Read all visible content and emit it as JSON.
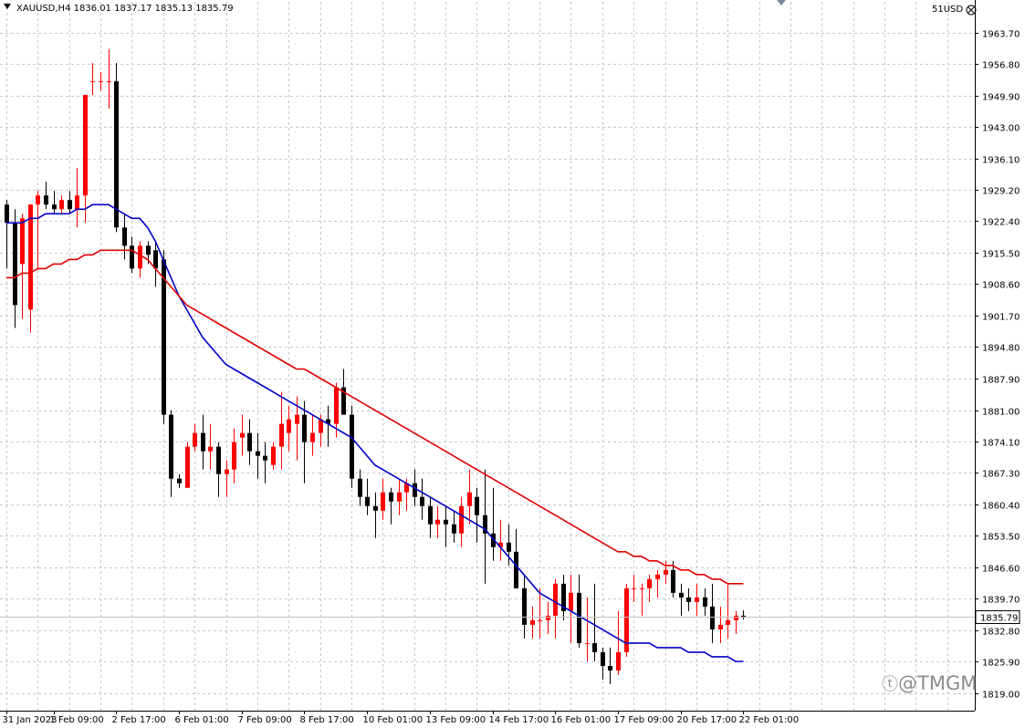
{
  "header": {
    "symbol_info": "XAUUSD,H4  1836.01 1837.17 1835.13 1835.79",
    "indicator_label": "51USD"
  },
  "watermark": "@TMGM",
  "colors": {
    "bull": "#ff0000",
    "bear": "#000000",
    "ma_fast": "#0000c8",
    "ma_slow": "#e00000",
    "grid": "#c8c8c8",
    "current_price_line": "#c0c0c0"
  },
  "chart_data": {
    "type": "candlestick",
    "symbol": "XAUUSD",
    "timeframe": "H4",
    "ylim": [
      1819,
      1967
    ],
    "y_ticks": [
      "1963.70",
      "1956.80",
      "1949.90",
      "1943.00",
      "1936.10",
      "1929.20",
      "1922.40",
      "1915.50",
      "1908.60",
      "1901.70",
      "1894.80",
      "1887.90",
      "1881.00",
      "1874.10",
      "1867.30",
      "1860.40",
      "1853.50",
      "1846.60",
      "1839.70",
      "1832.80",
      "1825.90",
      "1819.00"
    ],
    "x_ticks": [
      {
        "label": "31 Jan 2023",
        "index": 0
      },
      {
        "label": "1 Feb 09:00",
        "index": 6
      },
      {
        "label": "2 Feb 17:00",
        "index": 14
      },
      {
        "label": "6 Feb 01:00",
        "index": 22
      },
      {
        "label": "7 Feb 09:00",
        "index": 30
      },
      {
        "label": "8 Feb 17:00",
        "index": 38
      },
      {
        "label": "10 Feb 01:00",
        "index": 46
      },
      {
        "label": "13 Feb 09:00",
        "index": 54
      },
      {
        "label": "14 Feb 17:00",
        "index": 62
      },
      {
        "label": "16 Feb 01:00",
        "index": 70
      },
      {
        "label": "17 Feb 09:00",
        "index": 78
      },
      {
        "label": "20 Feb 17:00",
        "index": 86
      },
      {
        "label": "22 Feb 01:00",
        "index": 94
      }
    ],
    "current_price": "1835.79",
    "candles": [
      [
        1926,
        1927,
        1912,
        1922
      ],
      [
        1922,
        1925,
        1899,
        1904
      ],
      [
        1913,
        1924,
        1901,
        1923
      ],
      [
        1903,
        1926,
        1898,
        1926
      ],
      [
        1926,
        1929,
        1912,
        1928
      ],
      [
        1928,
        1931,
        1925,
        1926
      ],
      [
        1926,
        1929,
        1924,
        1925
      ],
      [
        1925,
        1928,
        1924,
        1927
      ],
      [
        1927,
        1929,
        1924,
        1925
      ],
      [
        1925,
        1934,
        1921,
        1928
      ],
      [
        1928,
        1950,
        1922,
        1950
      ],
      [
        1953,
        1957,
        1950,
        1953
      ],
      [
        1953,
        1955,
        1951,
        1953
      ],
      [
        1953,
        1960,
        1947,
        1953
      ],
      [
        1953,
        1957,
        1920,
        1921
      ],
      [
        1921,
        1924,
        1914,
        1917
      ],
      [
        1917,
        1919,
        1911,
        1912
      ],
      [
        1912,
        1918,
        1910,
        1917
      ],
      [
        1917,
        1918,
        1913,
        1915
      ],
      [
        1916,
        1918,
        1908,
        1912
      ],
      [
        1914,
        1916,
        1878,
        1880
      ],
      [
        1880,
        1881,
        1862,
        1866
      ],
      [
        1866,
        1867,
        1864,
        1865
      ],
      [
        1864,
        1874,
        1864,
        1873
      ],
      [
        1873,
        1878,
        1872,
        1876
      ],
      [
        1876,
        1880,
        1868,
        1872
      ],
      [
        1872,
        1878,
        1868,
        1873
      ],
      [
        1873,
        1874,
        1862,
        1867
      ],
      [
        1867,
        1870,
        1862,
        1868
      ],
      [
        1868,
        1877,
        1865,
        1874
      ],
      [
        1875,
        1880,
        1871,
        1876
      ],
      [
        1876,
        1879,
        1869,
        1872
      ],
      [
        1872,
        1876,
        1866,
        1871
      ],
      [
        1871,
        1874,
        1865,
        1870
      ],
      [
        1869,
        1874,
        1868,
        1873
      ],
      [
        1873,
        1885,
        1868,
        1878
      ],
      [
        1876,
        1882,
        1872,
        1879
      ],
      [
        1878,
        1884,
        1870,
        1880
      ],
      [
        1880,
        1883,
        1865,
        1874
      ],
      [
        1874,
        1880,
        1871,
        1876
      ],
      [
        1876,
        1880,
        1873,
        1879
      ],
      [
        1879,
        1882,
        1873,
        1878
      ],
      [
        1878,
        1887,
        1875,
        1886
      ],
      [
        1886,
        1890,
        1880,
        1880
      ],
      [
        1880,
        1882,
        1864,
        1866
      ],
      [
        1866,
        1868,
        1860,
        1862
      ],
      [
        1862,
        1866,
        1858,
        1860
      ],
      [
        1860,
        1863,
        1853,
        1859
      ],
      [
        1859,
        1866,
        1857,
        1863
      ],
      [
        1863,
        1864,
        1856,
        1861
      ],
      [
        1861,
        1866,
        1858,
        1863
      ],
      [
        1863,
        1866,
        1859,
        1865
      ],
      [
        1865,
        1868,
        1860,
        1862
      ],
      [
        1862,
        1866,
        1857,
        1860
      ],
      [
        1860,
        1862,
        1853,
        1856
      ],
      [
        1856,
        1860,
        1853,
        1857
      ],
      [
        1857,
        1860,
        1851,
        1856
      ],
      [
        1856,
        1859,
        1852,
        1854
      ],
      [
        1854,
        1862,
        1851,
        1860
      ],
      [
        1860,
        1868,
        1856,
        1863
      ],
      [
        1862,
        1864,
        1852,
        1858
      ],
      [
        1858,
        1868,
        1843,
        1854
      ],
      [
        1854,
        1864,
        1848,
        1851
      ],
      [
        1851,
        1857,
        1848,
        1852
      ],
      [
        1852,
        1856,
        1847,
        1850
      ],
      [
        1850,
        1855,
        1842,
        1842
      ],
      [
        1842,
        1845,
        1831,
        1834
      ],
      [
        1834,
        1838,
        1831,
        1835
      ],
      [
        1835,
        1842,
        1831,
        1835
      ],
      [
        1835,
        1839,
        1832,
        1836
      ],
      [
        1836,
        1844,
        1831,
        1843
      ],
      [
        1843,
        1845,
        1835,
        1837
      ],
      [
        1837,
        1845,
        1830,
        1841
      ],
      [
        1841,
        1845,
        1829,
        1830
      ],
      [
        1830,
        1840,
        1826,
        1830
      ],
      [
        1830,
        1843,
        1826,
        1828
      ],
      [
        1828,
        1829,
        1822,
        1825
      ],
      [
        1825,
        1829,
        1821,
        1824
      ],
      [
        1824,
        1837,
        1823,
        1828
      ],
      [
        1828,
        1843,
        1827,
        1842
      ],
      [
        1842,
        1845,
        1839,
        1842
      ],
      [
        1842,
        1843,
        1836,
        1842
      ],
      [
        1842,
        1845,
        1839,
        1844
      ],
      [
        1844,
        1846,
        1840,
        1845
      ],
      [
        1845,
        1848,
        1843,
        1846
      ],
      [
        1846,
        1848,
        1840,
        1841
      ],
      [
        1841,
        1843,
        1836,
        1840
      ],
      [
        1840,
        1842,
        1837,
        1839
      ],
      [
        1839,
        1843,
        1836,
        1840
      ],
      [
        1840,
        1842,
        1836,
        1838
      ],
      [
        1838,
        1843,
        1830,
        1833
      ],
      [
        1833,
        1838,
        1830,
        1834
      ],
      [
        1834,
        1843,
        1831,
        1835
      ],
      [
        1835,
        1837,
        1832,
        1836
      ],
      [
        1836.01,
        1837.17,
        1835.13,
        1835.79
      ]
    ],
    "series": [
      {
        "color": "#0000c8",
        "values": [
          1922,
          1922,
          1922,
          1923,
          1923,
          1924,
          1924,
          1924,
          1924,
          1925,
          1925,
          1926,
          1926,
          1926,
          1925,
          1924,
          1923,
          1923,
          1921,
          1918,
          1914,
          1910,
          1906,
          1903,
          1900,
          1897,
          1895,
          1893,
          1891,
          1890,
          1889,
          1888,
          1887,
          1886,
          1885,
          1884,
          1883,
          1882,
          1881,
          1880,
          1879,
          1878,
          1877,
          1876,
          1875,
          1873,
          1871,
          1869,
          1868,
          1867,
          1866,
          1865,
          1864,
          1863,
          1862,
          1861,
          1860,
          1859,
          1858,
          1857,
          1856,
          1855,
          1853,
          1851,
          1849,
          1847,
          1845,
          1843,
          1841,
          1840,
          1839,
          1838,
          1837,
          1836,
          1835,
          1834,
          1833,
          1832,
          1831,
          1830,
          1830,
          1830,
          1830,
          1829,
          1829,
          1829,
          1829,
          1828,
          1828,
          1828,
          1827,
          1827,
          1827,
          1826,
          1826
        ]
      },
      {
        "color": "#e00000",
        "values": [
          1910,
          1910,
          1911,
          1911,
          1912,
          1912,
          1913,
          1913,
          1914,
          1914,
          1915,
          1915,
          1916,
          1916,
          1916,
          1916,
          1916,
          1915,
          1914,
          1912,
          1910,
          1908,
          1906,
          1904,
          1903,
          1902,
          1901,
          1900,
          1899,
          1898,
          1897,
          1896,
          1895,
          1894,
          1893,
          1892,
          1891,
          1890,
          1890,
          1889,
          1888,
          1887,
          1886,
          1885,
          1884,
          1883,
          1882,
          1881,
          1880,
          1879,
          1878,
          1877,
          1876,
          1875,
          1874,
          1873,
          1872,
          1871,
          1870,
          1869,
          1868,
          1867,
          1866,
          1865,
          1864,
          1863,
          1862,
          1861,
          1860,
          1859,
          1858,
          1857,
          1856,
          1855,
          1854,
          1853,
          1852,
          1851,
          1850,
          1850,
          1849,
          1849,
          1848,
          1848,
          1847,
          1847,
          1846,
          1846,
          1845,
          1845,
          1844,
          1844,
          1843,
          1843,
          1843
        ]
      }
    ]
  }
}
